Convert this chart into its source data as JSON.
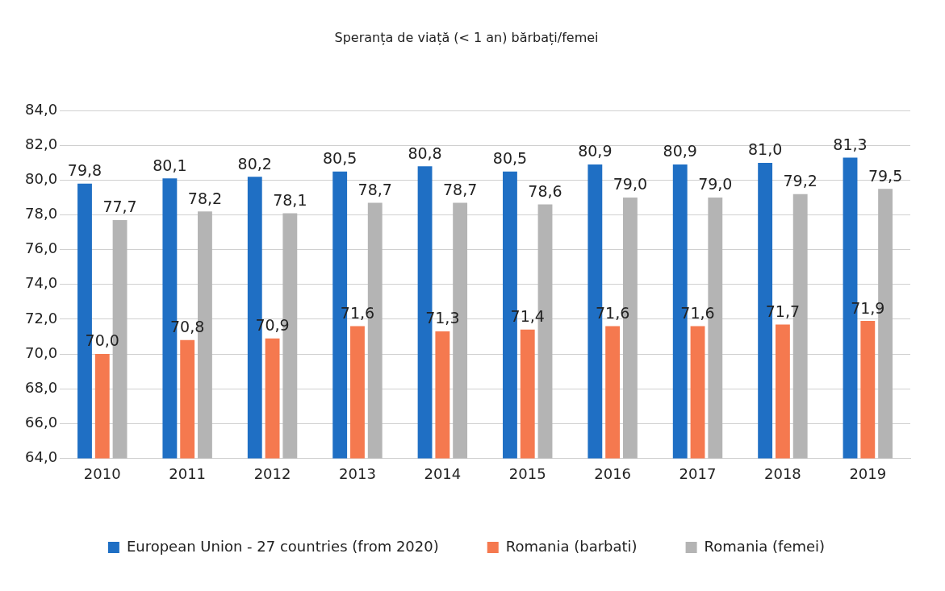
{
  "chart_data": {
    "type": "bar",
    "title": "Speranța de viață (< 1 an) bărbați/femei",
    "categories": [
      "2010",
      "2011",
      "2012",
      "2013",
      "2014",
      "2015",
      "2016",
      "2017",
      "2018",
      "2019"
    ],
    "series": [
      {
        "name": "European Union - 27 countries (from 2020)",
        "color": "#1f6fc4",
        "values": [
          79.8,
          80.1,
          80.2,
          80.5,
          80.8,
          80.5,
          80.9,
          80.9,
          81.0,
          81.3
        ],
        "value_labels": [
          "79,8",
          "80,1",
          "80,2",
          "80,5",
          "80,8",
          "80,5",
          "80,9",
          "80,9",
          "81,0",
          "81,3"
        ]
      },
      {
        "name": "Romania (barbati)",
        "color": "#f5794f",
        "values": [
          70.0,
          70.8,
          70.9,
          71.6,
          71.3,
          71.4,
          71.6,
          71.6,
          71.7,
          71.9
        ],
        "value_labels": [
          "70,0",
          "70,8",
          "70,9",
          "71,6",
          "71,3",
          "71,4",
          "71,6",
          "71,6",
          "71,7",
          "71,9"
        ]
      },
      {
        "name": "Romania (femei)",
        "color": "#b4b4b4",
        "values": [
          77.7,
          78.2,
          78.1,
          78.7,
          78.7,
          78.6,
          79.0,
          79.0,
          79.2,
          79.5
        ],
        "value_labels": [
          "77,7",
          "78,2",
          "78,1",
          "78,7",
          "78,7",
          "78,6",
          "79,0",
          "79,0",
          "79,2",
          "79,5"
        ]
      }
    ],
    "ylim": [
      64,
      84
    ],
    "yticks": [
      {
        "value": 64,
        "label": "64,0"
      },
      {
        "value": 66,
        "label": "66,0"
      },
      {
        "value": 68,
        "label": "68,0"
      },
      {
        "value": 70,
        "label": "70,0"
      },
      {
        "value": 72,
        "label": "72,0"
      },
      {
        "value": 74,
        "label": "74,0"
      },
      {
        "value": 76,
        "label": "76,0"
      },
      {
        "value": 78,
        "label": "78,0"
      },
      {
        "value": 80,
        "label": "80,0"
      },
      {
        "value": 82,
        "label": "82,0"
      },
      {
        "value": 84,
        "label": "84,0"
      }
    ],
    "grid": "y",
    "legend": "bottom"
  }
}
